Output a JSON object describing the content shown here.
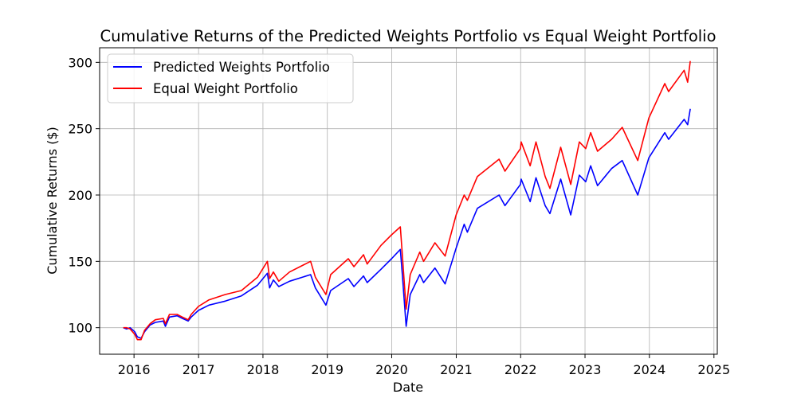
{
  "chart_data": {
    "type": "line",
    "title": "Cumulative Returns of the Predicted Weights Portfolio vs Equal Weight Portfolio",
    "xlabel": "Date",
    "ylabel": "Cumulative Returns ($)",
    "xlim": [
      "2015-06-20",
      "2025-01-20"
    ],
    "ylim": [
      80,
      311
    ],
    "x_ticks": [
      "2016",
      "2017",
      "2018",
      "2019",
      "2020",
      "2021",
      "2022",
      "2023",
      "2024",
      "2025"
    ],
    "y_ticks": [
      100,
      150,
      200,
      250,
      300
    ],
    "grid": true,
    "legend_position": "top-left",
    "series": [
      {
        "name": "Predicted Weights Portfolio",
        "color": "#0000ff",
        "points": [
          [
            "2015-11-01",
            100
          ],
          [
            "2015-11-20",
            99
          ],
          [
            "2015-12-10",
            100
          ],
          [
            "2016-01-05",
            97
          ],
          [
            "2016-01-20",
            93
          ],
          [
            "2016-02-10",
            92
          ],
          [
            "2016-03-01",
            97
          ],
          [
            "2016-04-01",
            102
          ],
          [
            "2016-05-01",
            104
          ],
          [
            "2016-06-15",
            105
          ],
          [
            "2016-06-27",
            101
          ],
          [
            "2016-07-20",
            108
          ],
          [
            "2016-09-01",
            109
          ],
          [
            "2016-10-01",
            107
          ],
          [
            "2016-11-03",
            105
          ],
          [
            "2016-11-20",
            108
          ],
          [
            "2016-12-31",
            113
          ],
          [
            "2017-03-01",
            117
          ],
          [
            "2017-06-01",
            120
          ],
          [
            "2017-09-01",
            124
          ],
          [
            "2017-12-01",
            132
          ],
          [
            "2018-01-26",
            141
          ],
          [
            "2018-02-08",
            130
          ],
          [
            "2018-03-01",
            136
          ],
          [
            "2018-04-01",
            131
          ],
          [
            "2018-06-01",
            135
          ],
          [
            "2018-09-28",
            140
          ],
          [
            "2018-10-25",
            130
          ],
          [
            "2018-12-24",
            117
          ],
          [
            "2019-01-20",
            128
          ],
          [
            "2019-04-30",
            137
          ],
          [
            "2019-06-01",
            131
          ],
          [
            "2019-07-25",
            139
          ],
          [
            "2019-08-15",
            134
          ],
          [
            "2019-11-01",
            144
          ],
          [
            "2019-12-31",
            152
          ],
          [
            "2020-02-19",
            159
          ],
          [
            "2020-03-01",
            140
          ],
          [
            "2020-03-23",
            101
          ],
          [
            "2020-04-15",
            125
          ],
          [
            "2020-06-08",
            140
          ],
          [
            "2020-06-30",
            134
          ],
          [
            "2020-09-02",
            145
          ],
          [
            "2020-10-30",
            133
          ],
          [
            "2020-12-31",
            160
          ],
          [
            "2021-02-15",
            178
          ],
          [
            "2021-03-05",
            172
          ],
          [
            "2021-05-01",
            190
          ],
          [
            "2021-09-01",
            200
          ],
          [
            "2021-10-04",
            192
          ],
          [
            "2021-12-31",
            208
          ],
          [
            "2022-01-04",
            212
          ],
          [
            "2022-02-24",
            195
          ],
          [
            "2022-03-29",
            213
          ],
          [
            "2022-05-20",
            192
          ],
          [
            "2022-06-16",
            186
          ],
          [
            "2022-08-16",
            212
          ],
          [
            "2022-10-12",
            185
          ],
          [
            "2022-11-30",
            215
          ],
          [
            "2023-01-05",
            210
          ],
          [
            "2023-02-02",
            222
          ],
          [
            "2023-03-13",
            207
          ],
          [
            "2023-06-01",
            220
          ],
          [
            "2023-07-31",
            226
          ],
          [
            "2023-10-27",
            200
          ],
          [
            "2023-12-29",
            228
          ],
          [
            "2024-03-28",
            247
          ],
          [
            "2024-04-19",
            242
          ],
          [
            "2024-07-16",
            257
          ],
          [
            "2024-08-05",
            253
          ],
          [
            "2024-08-20",
            265
          ]
        ]
      },
      {
        "name": "Equal Weight Portfolio",
        "color": "#ff0000",
        "points": [
          [
            "2015-11-01",
            100
          ],
          [
            "2015-11-20",
            100
          ],
          [
            "2015-12-10",
            99
          ],
          [
            "2016-01-05",
            95
          ],
          [
            "2016-01-20",
            91
          ],
          [
            "2016-02-10",
            91
          ],
          [
            "2016-03-01",
            98
          ],
          [
            "2016-04-01",
            103
          ],
          [
            "2016-05-01",
            106
          ],
          [
            "2016-06-15",
            107
          ],
          [
            "2016-06-27",
            103
          ],
          [
            "2016-07-20",
            110
          ],
          [
            "2016-09-01",
            110
          ],
          [
            "2016-10-01",
            108
          ],
          [
            "2016-11-03",
            106
          ],
          [
            "2016-11-20",
            110
          ],
          [
            "2016-12-31",
            116
          ],
          [
            "2017-03-01",
            121
          ],
          [
            "2017-06-01",
            125
          ],
          [
            "2017-09-01",
            128
          ],
          [
            "2017-12-01",
            138
          ],
          [
            "2018-01-26",
            150
          ],
          [
            "2018-02-08",
            137
          ],
          [
            "2018-03-01",
            142
          ],
          [
            "2018-04-01",
            135
          ],
          [
            "2018-06-01",
            142
          ],
          [
            "2018-09-28",
            150
          ],
          [
            "2018-10-25",
            138
          ],
          [
            "2018-12-24",
            125
          ],
          [
            "2019-01-20",
            140
          ],
          [
            "2019-04-30",
            152
          ],
          [
            "2019-06-01",
            146
          ],
          [
            "2019-07-25",
            155
          ],
          [
            "2019-08-15",
            148
          ],
          [
            "2019-11-01",
            162
          ],
          [
            "2019-12-31",
            170
          ],
          [
            "2020-02-19",
            176
          ],
          [
            "2020-03-01",
            155
          ],
          [
            "2020-03-23",
            114
          ],
          [
            "2020-04-15",
            140
          ],
          [
            "2020-06-08",
            157
          ],
          [
            "2020-06-30",
            150
          ],
          [
            "2020-09-02",
            164
          ],
          [
            "2020-10-30",
            154
          ],
          [
            "2020-12-31",
            185
          ],
          [
            "2021-02-15",
            200
          ],
          [
            "2021-03-05",
            196
          ],
          [
            "2021-05-01",
            214
          ],
          [
            "2021-09-01",
            227
          ],
          [
            "2021-10-04",
            218
          ],
          [
            "2021-12-31",
            235
          ],
          [
            "2022-01-04",
            240
          ],
          [
            "2022-02-24",
            222
          ],
          [
            "2022-03-29",
            240
          ],
          [
            "2022-05-20",
            214
          ],
          [
            "2022-06-16",
            205
          ],
          [
            "2022-08-16",
            236
          ],
          [
            "2022-10-12",
            208
          ],
          [
            "2022-11-30",
            240
          ],
          [
            "2023-01-05",
            235
          ],
          [
            "2023-02-02",
            247
          ],
          [
            "2023-03-13",
            233
          ],
          [
            "2023-06-01",
            242
          ],
          [
            "2023-07-31",
            251
          ],
          [
            "2023-10-27",
            226
          ],
          [
            "2023-12-29",
            258
          ],
          [
            "2024-03-28",
            284
          ],
          [
            "2024-04-19",
            278
          ],
          [
            "2024-07-16",
            294
          ],
          [
            "2024-08-05",
            285
          ],
          [
            "2024-08-20",
            301
          ]
        ]
      }
    ]
  }
}
